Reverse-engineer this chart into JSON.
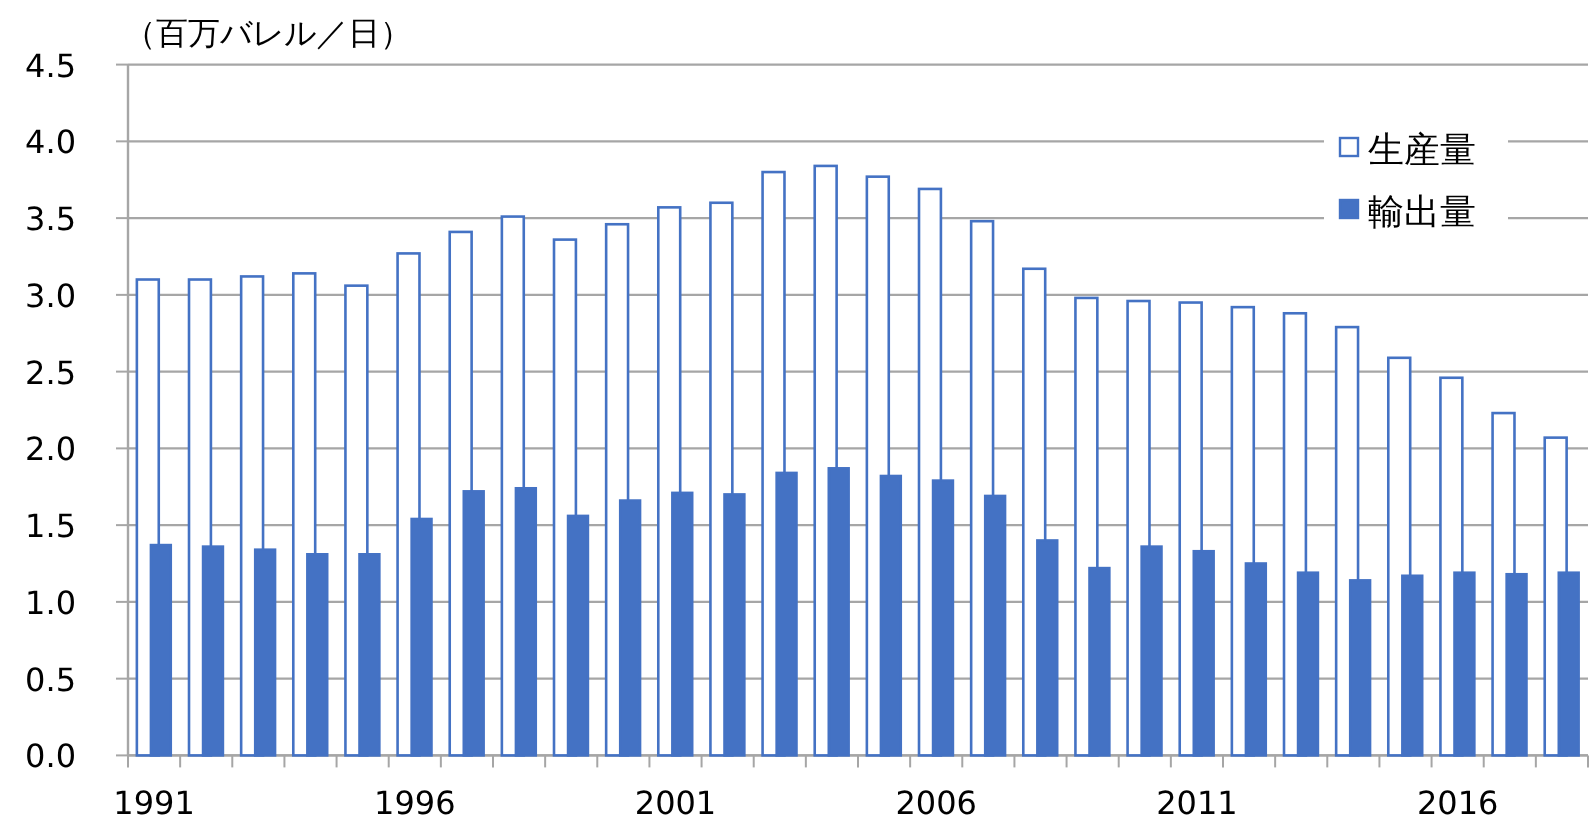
{
  "chart_data": {
    "type": "bar",
    "ylabel": "（百万バレル／日）",
    "categories": [
      "1991",
      null,
      null,
      null,
      null,
      "1996",
      null,
      null,
      null,
      null,
      "2001",
      null,
      null,
      null,
      null,
      "2006",
      null,
      null,
      null,
      null,
      "2011",
      null,
      null,
      null,
      null,
      "2016",
      null,
      null
    ],
    "series": [
      {
        "name": "生産量",
        "color": "#ffffff",
        "values": [
          3.1,
          3.1,
          3.12,
          3.14,
          3.06,
          3.27,
          3.41,
          3.51,
          3.36,
          3.46,
          3.57,
          3.6,
          3.8,
          3.84,
          3.77,
          3.69,
          3.48,
          3.17,
          2.98,
          2.96,
          2.95,
          2.92,
          2.88,
          2.79,
          2.59,
          2.46,
          2.23,
          2.07
        ]
      },
      {
        "name": "輸出量",
        "color": "#4472c4",
        "values": [
          1.37,
          1.36,
          1.34,
          1.31,
          1.31,
          1.54,
          1.72,
          1.74,
          1.56,
          1.66,
          1.71,
          1.7,
          1.84,
          1.87,
          1.82,
          1.79,
          1.69,
          1.4,
          1.22,
          1.36,
          1.33,
          1.25,
          1.19,
          1.14,
          1.17,
          1.19,
          1.18,
          1.19
        ]
      }
    ],
    "ylim": [
      0,
      4.5
    ],
    "yticks": [
      {
        "value": 0,
        "label": "0.0"
      },
      {
        "value": 0.5,
        "label": "0.5"
      },
      {
        "value": 1,
        "label": "1.0"
      },
      {
        "value": 1.5,
        "label": "1.5"
      },
      {
        "value": 2,
        "label": "2.0"
      },
      {
        "value": 2.5,
        "label": "2.5"
      },
      {
        "value": 3,
        "label": "3.0"
      },
      {
        "value": 3.5,
        "label": "3.5"
      },
      {
        "value": 4,
        "label": "4.0"
      },
      {
        "value": 4.5,
        "label": "4.5"
      }
    ],
    "grid": "y",
    "legend": "top right"
  }
}
